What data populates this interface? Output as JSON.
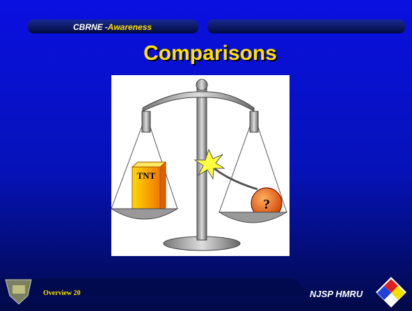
{
  "header": {
    "course": "CBRNE",
    "dash": "-",
    "section": "Awareness"
  },
  "title": "Comparisons",
  "image": {
    "box_label": "TNT",
    "bomb_label": "?"
  },
  "footer": {
    "left": "Overview 20",
    "right": "NJSP HMRU"
  }
}
